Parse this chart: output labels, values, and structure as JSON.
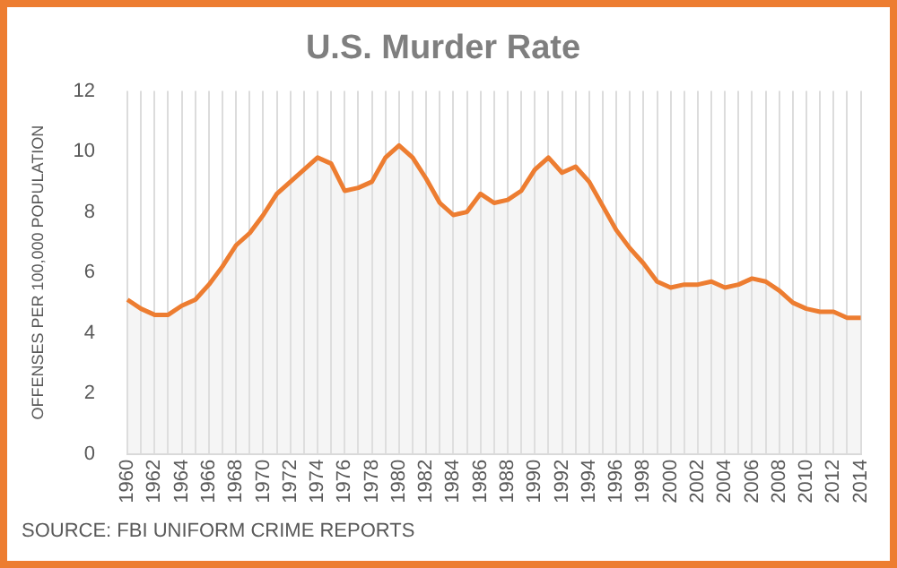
{
  "chart_data": {
    "type": "area",
    "title": "U.S. Murder Rate",
    "ylabel": "OFFENSES PER 100,000 POPULATION",
    "annotations": [
      "SOURCE: FBI UNIFORM CRIME REPORTS"
    ],
    "categories": [
      "1960",
      null,
      "1962",
      null,
      "1964",
      null,
      "1966",
      null,
      "1968",
      null,
      "1970",
      null,
      "1972",
      null,
      "1974",
      null,
      "1976",
      null,
      "1978",
      null,
      "1980",
      null,
      "1982",
      null,
      "1984",
      null,
      "1986",
      null,
      "1988",
      null,
      "1990",
      null,
      "1992",
      null,
      "1994",
      null,
      "1996",
      null,
      "1998",
      null,
      "2000",
      null,
      "2002",
      null,
      "2004",
      null,
      "2006",
      null,
      "2008",
      null,
      "2010",
      null,
      "2012",
      null,
      "2014"
    ],
    "series": [
      {
        "color": "#ed7d31",
        "values": [
          5.1,
          4.8,
          4.6,
          4.6,
          4.9,
          5.1,
          5.6,
          6.2,
          6.9,
          7.3,
          7.9,
          8.6,
          9.0,
          9.4,
          9.8,
          9.6,
          8.7,
          8.8,
          9.0,
          9.8,
          10.2,
          9.8,
          9.1,
          8.3,
          7.9,
          8.0,
          8.6,
          8.3,
          8.4,
          8.7,
          9.4,
          9.8,
          9.3,
          9.5,
          9.0,
          8.2,
          7.4,
          6.8,
          6.3,
          5.7,
          5.5,
          5.6,
          5.6,
          5.7,
          5.5,
          5.6,
          5.8,
          5.7,
          5.4,
          5.0,
          4.8,
          4.7,
          4.7,
          4.5,
          4.5
        ]
      }
    ],
    "ylim": [
      0,
      12
    ],
    "yticks": [
      0,
      2,
      4,
      6,
      8,
      10,
      12
    ],
    "grid": "x",
    "legend": false
  }
}
